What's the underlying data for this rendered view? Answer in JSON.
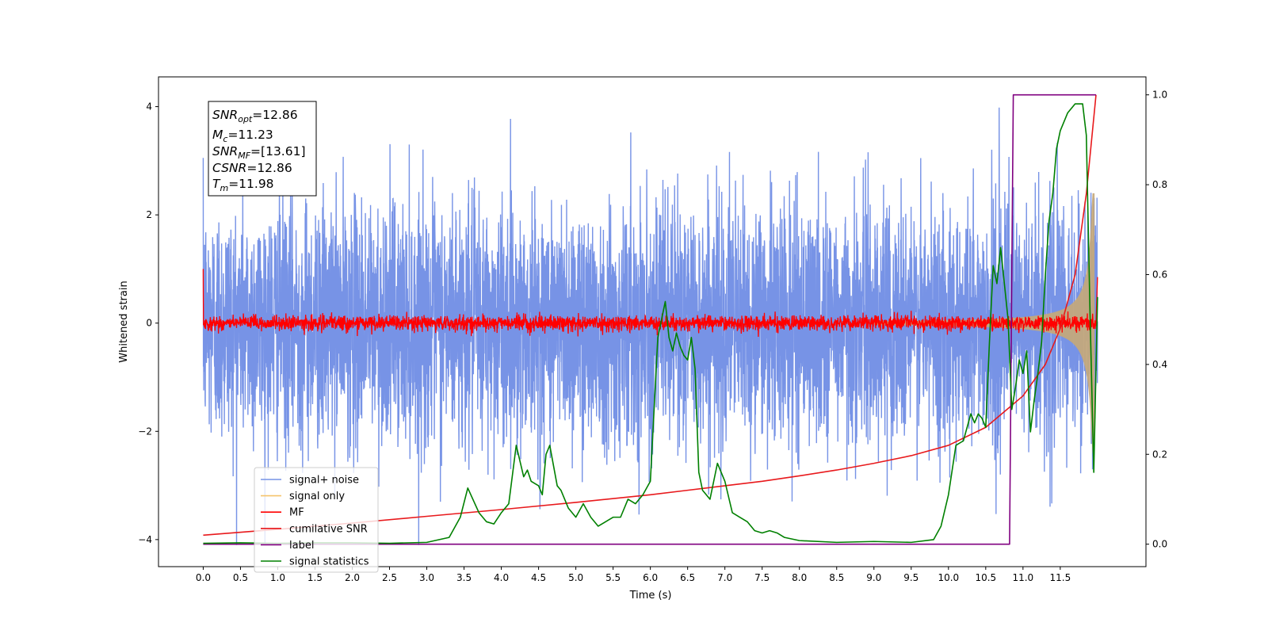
{
  "chart_data": {
    "type": "line",
    "xlabel": "Time (s)",
    "ylabel": "Whitened strain",
    "xlim": [
      -0.6,
      12.65
    ],
    "ylim": [
      -4.5,
      4.55
    ],
    "y2lim": [
      -0.05,
      1.04
    ],
    "x_ticks": [
      "0.0",
      "0.5",
      "1.0",
      "1.5",
      "2.0",
      "2.5",
      "3.0",
      "3.5",
      "4.0",
      "4.5",
      "5.0",
      "5.5",
      "6.0",
      "6.5",
      "7.0",
      "7.5",
      "8.0",
      "8.5",
      "9.0",
      "9.5",
      "10.0",
      "10.5",
      "11.0",
      "11.5"
    ],
    "y_ticks": [
      "4",
      "2",
      "0",
      "−2",
      "−4"
    ],
    "y2_ticks": [
      "1.0",
      "0.8",
      "0.6",
      "0.4",
      "0.2",
      "0.0"
    ],
    "legend": {
      "position": "lower-left",
      "entries": [
        {
          "label": "signal+ noise",
          "color": "#7793e6"
        },
        {
          "label": "signal only",
          "color": "#f5c46b"
        },
        {
          "label": "MF",
          "color": "#ff0000"
        },
        {
          "label": "cumilative SNR",
          "color": "#e8191c"
        },
        {
          "label": "label",
          "color": "#800080"
        },
        {
          "label": "signal statistics",
          "color": "#008000"
        }
      ]
    },
    "info_box": {
      "snr_opt": {
        "base": "SNR",
        "sub": "opt",
        "value": "=12.86"
      },
      "mc": {
        "base": "M",
        "sub": "c",
        "value": "=11.23"
      },
      "snr_mf": {
        "base": "SNR",
        "sub": "MF",
        "value": "=[13.61]"
      },
      "csnr": {
        "base": "CSNR",
        "sub": "",
        "value": "=12.86"
      },
      "tm": {
        "base": "T",
        "sub": "m",
        "value": "=11.98"
      }
    },
    "series": [
      {
        "name": "signal+ noise",
        "kind": "noise",
        "x_range": [
          0.0,
          12.0
        ],
        "sigma": 1.1
      },
      {
        "name": "signal only",
        "kind": "chirp_envelope",
        "x_range": [
          0.0,
          11.98
        ],
        "peak_amplitude": 2.4
      },
      {
        "name": "MF",
        "kind": "noise",
        "x_range": [
          0.0,
          12.0
        ],
        "sigma": 0.07,
        "start_value": 1.0,
        "end_value": 0.85
      },
      {
        "name": "cumilative SNR",
        "x": [
          0.0,
          1.0,
          2.0,
          3.0,
          4.0,
          5.0,
          6.0,
          6.5,
          7.0,
          7.5,
          8.0,
          8.5,
          9.0,
          9.5,
          10.0,
          10.5,
          11.0,
          11.3,
          11.5,
          11.7,
          11.85,
          11.98
        ],
        "y2": [
          0.02,
          0.033,
          0.047,
          0.062,
          0.077,
          0.093,
          0.11,
          0.12,
          0.13,
          0.14,
          0.152,
          0.165,
          0.18,
          0.197,
          0.22,
          0.26,
          0.33,
          0.4,
          0.48,
          0.6,
          0.78,
          1.0
        ]
      },
      {
        "name": "label",
        "x": [
          0.0,
          10.82,
          10.87,
          11.98
        ],
        "y2": [
          0.0,
          0.0,
          1.0,
          1.0
        ]
      },
      {
        "name": "signal statistics",
        "x": [
          0.0,
          0.5,
          1.0,
          1.5,
          2.0,
          2.5,
          3.0,
          3.3,
          3.45,
          3.55,
          3.7,
          3.8,
          3.9,
          4.0,
          4.1,
          4.2,
          4.3,
          4.35,
          4.4,
          4.5,
          4.55,
          4.6,
          4.65,
          4.75,
          4.8,
          4.9,
          5.0,
          5.1,
          5.2,
          5.3,
          5.4,
          5.5,
          5.6,
          5.7,
          5.8,
          5.9,
          6.0,
          6.1,
          6.2,
          6.25,
          6.3,
          6.35,
          6.4,
          6.45,
          6.5,
          6.55,
          6.6,
          6.65,
          6.7,
          6.8,
          6.9,
          7.0,
          7.1,
          7.2,
          7.3,
          7.4,
          7.5,
          7.6,
          7.7,
          7.8,
          8.0,
          8.5,
          9.0,
          9.5,
          9.8,
          9.9,
          10.0,
          10.1,
          10.2,
          10.3,
          10.35,
          10.4,
          10.45,
          10.5,
          10.55,
          10.6,
          10.65,
          10.7,
          10.75,
          10.8,
          10.85,
          10.9,
          10.95,
          11.0,
          11.05,
          11.1,
          11.15,
          11.2,
          11.25,
          11.3,
          11.35,
          11.4,
          11.45,
          11.5,
          11.6,
          11.7,
          11.8,
          11.85,
          11.9,
          11.95,
          12.0
        ],
        "y2": [
          0.002,
          0.003,
          0.002,
          0.003,
          0.003,
          0.002,
          0.004,
          0.015,
          0.06,
          0.125,
          0.07,
          0.05,
          0.045,
          0.07,
          0.09,
          0.22,
          0.15,
          0.165,
          0.14,
          0.13,
          0.11,
          0.2,
          0.22,
          0.13,
          0.12,
          0.08,
          0.06,
          0.09,
          0.06,
          0.04,
          0.05,
          0.06,
          0.06,
          0.1,
          0.09,
          0.11,
          0.14,
          0.46,
          0.54,
          0.46,
          0.43,
          0.47,
          0.44,
          0.42,
          0.41,
          0.46,
          0.39,
          0.16,
          0.12,
          0.1,
          0.18,
          0.14,
          0.07,
          0.06,
          0.05,
          0.03,
          0.025,
          0.03,
          0.025,
          0.015,
          0.008,
          0.004,
          0.006,
          0.004,
          0.01,
          0.04,
          0.11,
          0.22,
          0.23,
          0.29,
          0.27,
          0.29,
          0.28,
          0.26,
          0.45,
          0.62,
          0.58,
          0.66,
          0.58,
          0.5,
          0.3,
          0.35,
          0.41,
          0.38,
          0.43,
          0.25,
          0.32,
          0.38,
          0.45,
          0.6,
          0.72,
          0.78,
          0.88,
          0.92,
          0.96,
          0.98,
          0.98,
          0.91,
          0.51,
          0.16,
          0.55
        ]
      }
    ]
  }
}
